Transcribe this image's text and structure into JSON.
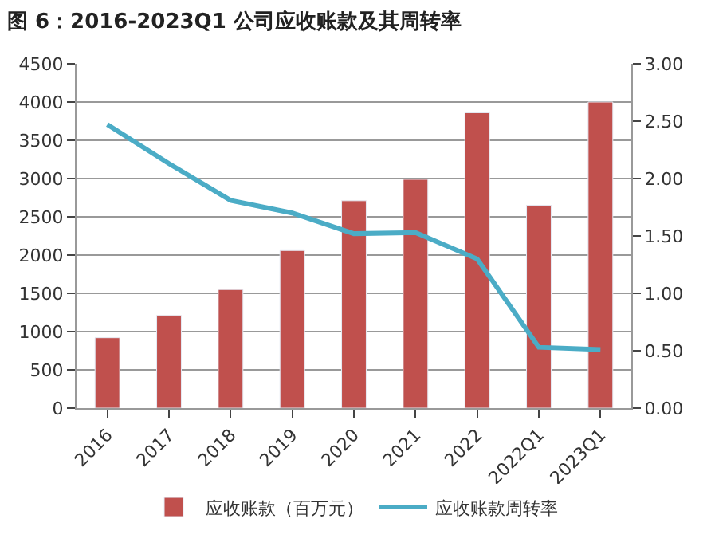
{
  "chart_data": {
    "type": "bar",
    "title": "图 6：2016-2023Q1 公司应收账款及其周转率",
    "categories": [
      "2016",
      "2017",
      "2018",
      "2019",
      "2020",
      "2021",
      "2022",
      "2022Q1",
      "2023Q1"
    ],
    "series": [
      {
        "name": "应收账款（百万元）",
        "color": "#c0504d",
        "values": [
          920,
          1210,
          1550,
          2060,
          2710,
          2990,
          3860,
          2650,
          4000
        ]
      },
      {
        "name": "应收账款周转率",
        "type": "line",
        "axis": "y2",
        "color": "#4bacc6",
        "values": [
          2.47,
          2.13,
          1.81,
          1.7,
          1.52,
          1.53,
          1.3,
          0.53,
          0.51
        ]
      }
    ],
    "ylim": [
      0,
      4500
    ],
    "yticks": [
      0,
      500,
      1000,
      1500,
      2000,
      2500,
      3000,
      3500,
      4000,
      4500
    ],
    "y2lim": [
      0,
      3
    ],
    "y2ticks": [
      {
        "value": 0,
        "label": "0.00"
      },
      {
        "value": 0.5,
        "label": "0.50"
      },
      {
        "value": 1,
        "label": "1.00"
      },
      {
        "value": 1.5,
        "label": "1.50"
      },
      {
        "value": 2,
        "label": "2.00"
      },
      {
        "value": 2.5,
        "label": "2.50"
      },
      {
        "value": 3,
        "label": "3.00"
      }
    ],
    "grid": "y",
    "legend": "bottom",
    "marker": "none"
  }
}
